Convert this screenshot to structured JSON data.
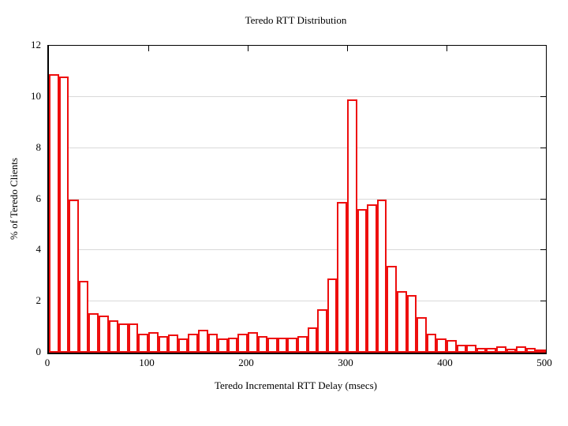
{
  "title": "Teredo RTT Distribution",
  "x_axis_label": "Teredo Incremental RTT Delay (msecs)",
  "y_axis_label": "% of Teredo Clients",
  "colors": {
    "bar_outline": "#ee0e0e",
    "bar_fill": "#ffffff",
    "axis": "#000000",
    "grid": "#d9d9d9",
    "background": "#ffffff",
    "text": "#000000"
  },
  "chart_data": {
    "type": "bar",
    "title": "Teredo RTT Distribution",
    "xlabel": "Teredo Incremental RTT Delay (msecs)",
    "ylabel": "% of Teredo Clients",
    "xlim": [
      0,
      500
    ],
    "ylim": [
      0,
      12
    ],
    "x_ticks": [
      0,
      100,
      200,
      300,
      400,
      500
    ],
    "y_ticks": [
      0,
      2,
      4,
      6,
      8,
      10,
      12
    ],
    "grid": "horizontal gridlines at each y tick, ticks mirrored on top and right borders",
    "legend": "none",
    "bin_width_msecs": 10,
    "bin_start_msecs": [
      0,
      10,
      20,
      30,
      40,
      50,
      60,
      70,
      80,
      90,
      100,
      110,
      120,
      130,
      140,
      150,
      160,
      170,
      180,
      190,
      200,
      210,
      220,
      230,
      240,
      250,
      260,
      270,
      280,
      290,
      300,
      310,
      320,
      330,
      340,
      350,
      360,
      370,
      380,
      390,
      400,
      410,
      420,
      430,
      440,
      450,
      460,
      470,
      480,
      490
    ],
    "values": [
      10.9,
      10.8,
      6.0,
      2.8,
      1.55,
      1.45,
      1.25,
      1.15,
      1.15,
      0.75,
      0.8,
      0.65,
      0.7,
      0.55,
      0.75,
      0.9,
      0.75,
      0.55,
      0.6,
      0.75,
      0.8,
      0.65,
      0.6,
      0.6,
      0.6,
      0.65,
      1.0,
      1.7,
      2.9,
      5.9,
      9.9,
      5.6,
      5.8,
      6.0,
      3.4,
      2.4,
      2.25,
      1.4,
      0.75,
      0.55,
      0.5,
      0.3,
      0.3,
      0.2,
      0.2,
      0.25,
      0.15,
      0.25,
      0.2,
      0.1
    ]
  }
}
